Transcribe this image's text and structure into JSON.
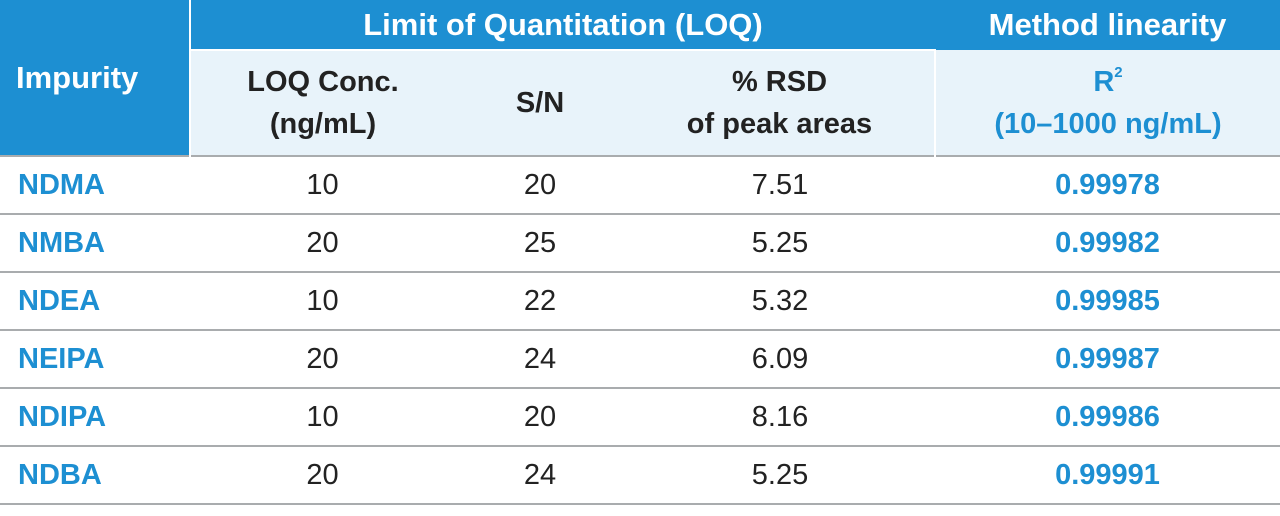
{
  "header": {
    "impurity": "Impurity",
    "loq_group": "Limit of Quantitation (LOQ)",
    "linearity_group": "Method linearity",
    "loq_conc_line1": "LOQ Conc.",
    "loq_conc_line2": "(ng/mL)",
    "sn": "S/N",
    "rsd_line1": "% RSD",
    "rsd_line2": "of peak areas",
    "r2_base": "R",
    "r2_sup": "2",
    "r2_range": "(10–1000 ng/mL)"
  },
  "rows": [
    {
      "impurity": "NDMA",
      "loq_conc": "10",
      "sn": "20",
      "rsd": "7.51",
      "r2": "0.99978"
    },
    {
      "impurity": "NMBA",
      "loq_conc": "20",
      "sn": "25",
      "rsd": "5.25",
      "r2": "0.99982"
    },
    {
      "impurity": "NDEA",
      "loq_conc": "10",
      "sn": "22",
      "rsd": "5.32",
      "r2": "0.99985"
    },
    {
      "impurity": "NEIPA",
      "loq_conc": "20",
      "sn": "24",
      "rsd": "6.09",
      "r2": "0.99987"
    },
    {
      "impurity": "NDIPA",
      "loq_conc": "10",
      "sn": "20",
      "rsd": "8.16",
      "r2": "0.99986"
    },
    {
      "impurity": "NDBA",
      "loq_conc": "20",
      "sn": "24",
      "rsd": "5.25",
      "r2": "0.99991"
    }
  ],
  "colors": {
    "header_background": "#1d8fd2",
    "subheader_background": "#e8f3fa",
    "accent_text": "#1d8fd2",
    "row_divider": "#a9acae"
  }
}
